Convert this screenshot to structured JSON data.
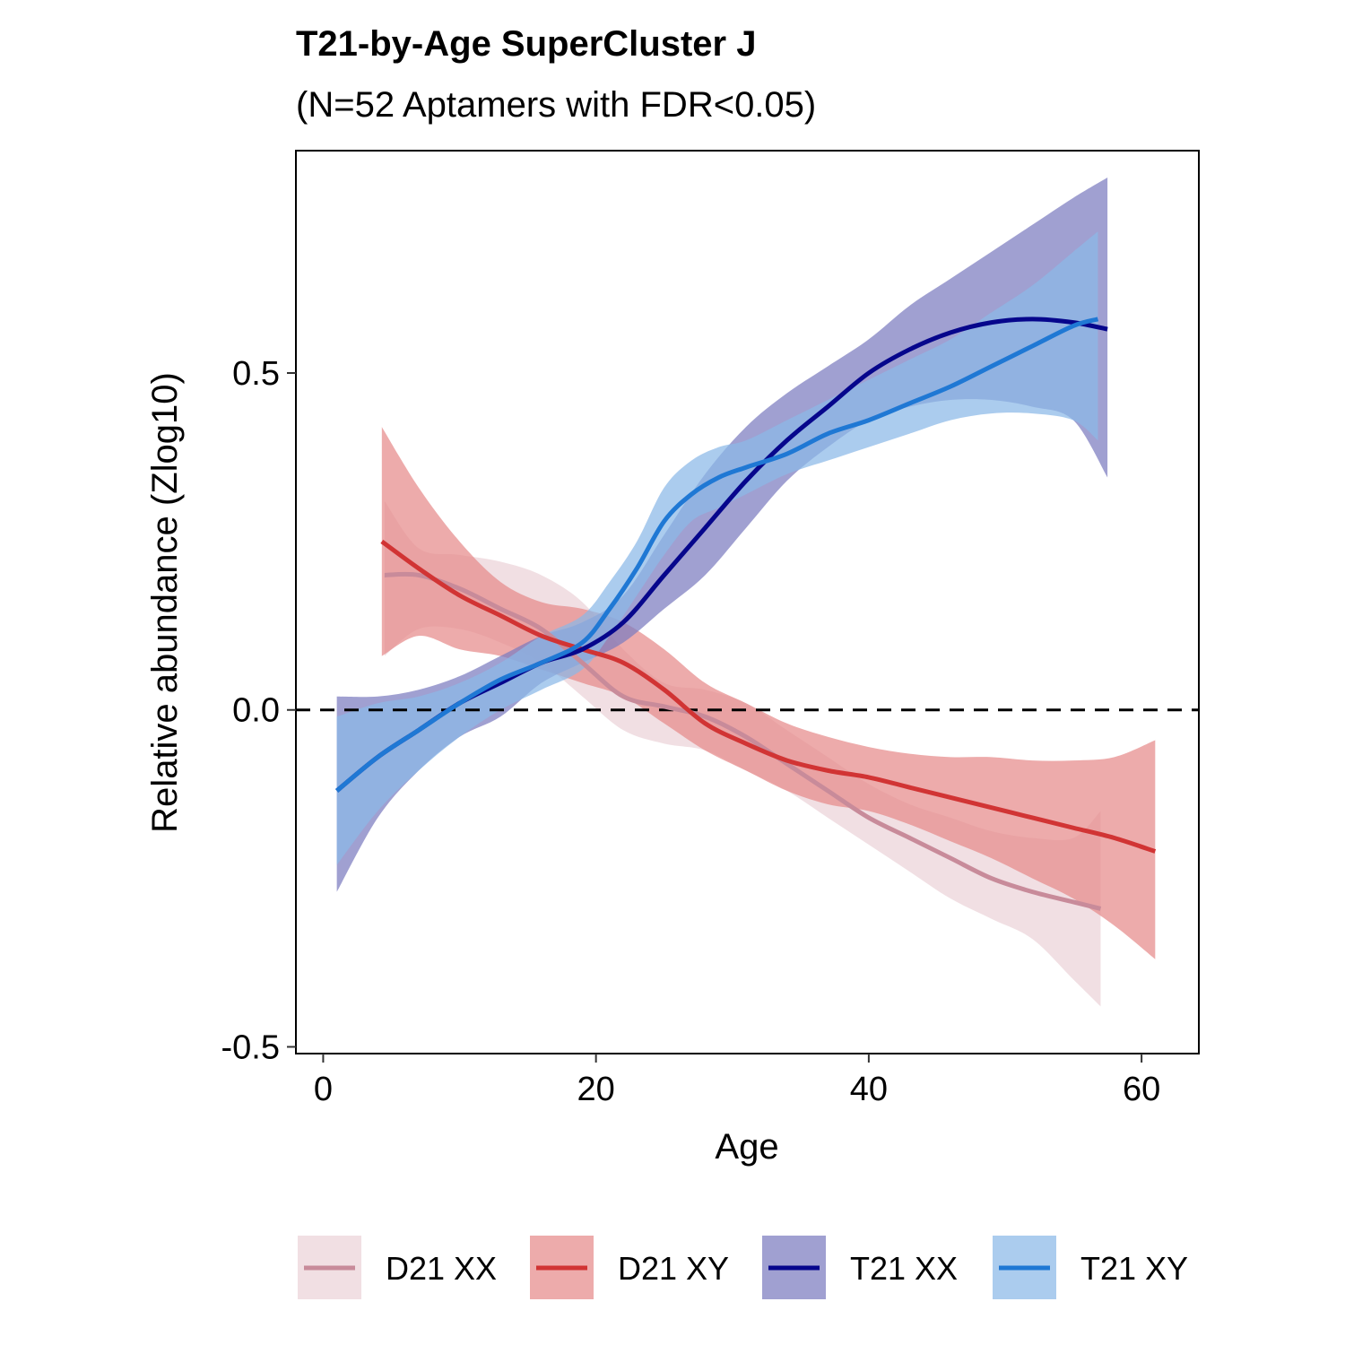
{
  "chart_data": {
    "type": "line",
    "title": "T21-by-Age SuperCluster J",
    "subtitle": "(N=52 Aptamers with FDR<0.05)",
    "xlabel": "Age",
    "ylabel": "Relative abundance (Zlog10)",
    "xlim": [
      -2,
      64.2
    ],
    "ylim": [
      -0.51,
      0.83
    ],
    "x_ticks": [
      0,
      20,
      40,
      60
    ],
    "x_tick_labels": [
      "0",
      "20",
      "40",
      "60"
    ],
    "y_ticks": [
      -0.5,
      0.0,
      0.5
    ],
    "y_tick_labels": [
      "-0.5",
      "0.0",
      "0.5"
    ],
    "reference_line": {
      "y": 0,
      "style": "dashed"
    },
    "grid": false,
    "legend_position": "bottom",
    "series": [
      {
        "name": "D21 XX",
        "line_color": "#c88b9a",
        "band_color": "#ebd2d8",
        "x": [
          4.5,
          7,
          10,
          13,
          16,
          19,
          22,
          25,
          28,
          31,
          34,
          37,
          40,
          43,
          46,
          49,
          52,
          55,
          57
        ],
        "y": [
          0.2,
          0.2,
          0.18,
          0.15,
          0.12,
          0.07,
          0.02,
          0.005,
          -0.01,
          -0.04,
          -0.08,
          -0.12,
          -0.16,
          -0.19,
          -0.22,
          -0.25,
          -0.27,
          -0.285,
          -0.295
        ],
        "lower": [
          0.08,
          0.12,
          0.12,
          0.1,
          0.07,
          0.02,
          -0.03,
          -0.05,
          -0.06,
          -0.09,
          -0.12,
          -0.16,
          -0.2,
          -0.24,
          -0.28,
          -0.31,
          -0.34,
          -0.4,
          -0.44
        ],
        "upper": [
          0.31,
          0.24,
          0.23,
          0.22,
          0.2,
          0.16,
          0.09,
          0.04,
          0.03,
          0.01,
          -0.03,
          -0.07,
          -0.11,
          -0.14,
          -0.16,
          -0.18,
          -0.19,
          -0.19,
          -0.15
        ]
      },
      {
        "name": "D21 XY",
        "line_color": "#d13434",
        "band_color": "#e68a8a",
        "x": [
          4.3,
          7,
          10,
          13,
          16,
          19,
          22,
          25,
          28,
          31,
          34,
          37,
          40,
          43,
          46,
          49,
          52,
          55,
          58,
          61
        ],
        "y": [
          0.25,
          0.21,
          0.17,
          0.14,
          0.11,
          0.09,
          0.07,
          0.03,
          -0.02,
          -0.05,
          -0.075,
          -0.09,
          -0.1,
          -0.115,
          -0.13,
          -0.145,
          -0.16,
          -0.175,
          -0.19,
          -0.21
        ],
        "lower": [
          0.08,
          0.11,
          0.09,
          0.08,
          0.06,
          0.04,
          0.02,
          -0.02,
          -0.06,
          -0.09,
          -0.12,
          -0.14,
          -0.15,
          -0.17,
          -0.195,
          -0.22,
          -0.25,
          -0.28,
          -0.32,
          -0.37
        ],
        "upper": [
          0.42,
          0.33,
          0.25,
          0.19,
          0.16,
          0.15,
          0.13,
          0.09,
          0.04,
          0.01,
          -0.02,
          -0.04,
          -0.055,
          -0.065,
          -0.07,
          -0.07,
          -0.075,
          -0.075,
          -0.07,
          -0.045
        ]
      },
      {
        "name": "T21 XX",
        "line_color": "#06068c",
        "band_color": "#7b7bbf",
        "x": [
          1,
          4,
          7,
          10,
          13,
          16,
          19,
          22,
          25,
          28,
          31,
          34,
          37,
          40,
          43,
          46,
          49,
          52,
          55,
          57.5
        ],
        "y": [
          -0.12,
          -0.07,
          -0.03,
          0.01,
          0.04,
          0.07,
          0.09,
          0.13,
          0.2,
          0.27,
          0.34,
          0.4,
          0.45,
          0.5,
          0.535,
          0.56,
          0.575,
          0.58,
          0.575,
          0.565
        ],
        "lower": [
          -0.27,
          -0.16,
          -0.09,
          -0.04,
          -0.01,
          0.04,
          0.07,
          0.1,
          0.15,
          0.2,
          0.27,
          0.34,
          0.39,
          0.43,
          0.45,
          0.46,
          0.46,
          0.45,
          0.43,
          0.345
        ],
        "upper": [
          0.02,
          0.02,
          0.03,
          0.05,
          0.08,
          0.11,
          0.13,
          0.17,
          0.26,
          0.35,
          0.42,
          0.47,
          0.51,
          0.55,
          0.6,
          0.64,
          0.68,
          0.72,
          0.76,
          0.79
        ]
      },
      {
        "name": "T21 XY",
        "line_color": "#1f78d4",
        "band_color": "#8ab8e8",
        "x": [
          1,
          4,
          7,
          10,
          13,
          16,
          19,
          21,
          23,
          25,
          27,
          29,
          31,
          34,
          37,
          40,
          43,
          46,
          49,
          52,
          55,
          56.8
        ],
        "y": [
          -0.12,
          -0.07,
          -0.03,
          0.01,
          0.045,
          0.07,
          0.1,
          0.15,
          0.21,
          0.28,
          0.32,
          0.345,
          0.36,
          0.38,
          0.41,
          0.43,
          0.455,
          0.48,
          0.51,
          0.54,
          0.57,
          0.58
        ],
        "lower": [
          -0.23,
          -0.15,
          -0.09,
          -0.04,
          0.0,
          0.03,
          0.06,
          0.11,
          0.17,
          0.23,
          0.28,
          0.3,
          0.32,
          0.35,
          0.37,
          0.39,
          0.41,
          0.43,
          0.44,
          0.44,
          0.43,
          0.4
        ],
        "upper": [
          -0.01,
          0.01,
          0.02,
          0.04,
          0.07,
          0.11,
          0.14,
          0.19,
          0.25,
          0.33,
          0.37,
          0.39,
          0.4,
          0.43,
          0.46,
          0.49,
          0.52,
          0.55,
          0.59,
          0.63,
          0.68,
          0.71
        ]
      }
    ]
  }
}
